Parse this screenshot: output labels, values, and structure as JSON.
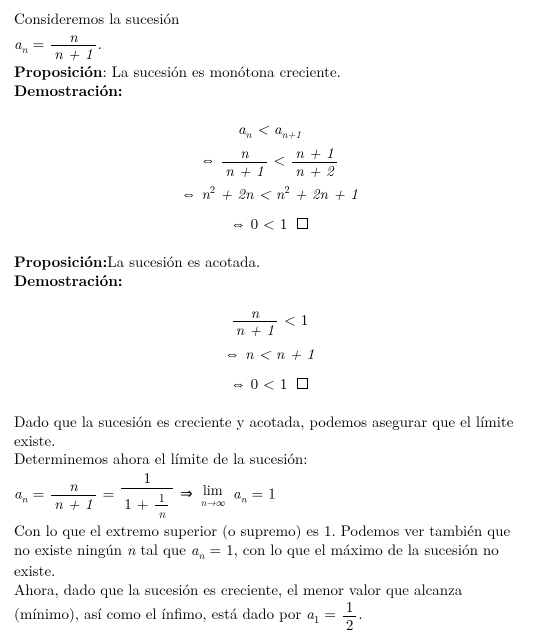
{
  "p_intro": "Consideremos la sucesión",
  "seq_def_left": "a",
  "seq_def_sub": "n",
  "seq_def_eq": " = ",
  "seq_def_num": "n",
  "seq_def_den": "n + 1",
  "seq_def_end": ".",
  "prop1_label": "Proposición",
  "prop1_text": ": La sucesión es monótona creciente.",
  "demo_label": "Demostración:",
  "eq1_l1_a": "a",
  "eq1_l1_asub": "n",
  "eq1_l1_mid": " < a",
  "eq1_l1_bsub": "n+1",
  "eq1_l2_pre": "⇔ ",
  "eq1_l2_num1": "n",
  "eq1_l2_den1": "n + 1",
  "eq1_l2_mid": " < ",
  "eq1_l2_num2": "n + 1",
  "eq1_l2_den2": "n + 2",
  "eq1_l3": "⇔ n",
  "eq1_l3_sup1": "2",
  "eq1_l3_b": " + 2n < n",
  "eq1_l3_sup2": "2",
  "eq1_l3_c": " + 2n + 1",
  "eq1_l4": "⇔ 0 < 1",
  "prop2_label": "Proposición:",
  "prop2_text": "La sucesión es acotada.",
  "eq2_l1_num": "n",
  "eq2_l1_den": "n + 1",
  "eq2_l1_rest": " < 1",
  "eq2_l2": "⇔ n < n + 1",
  "eq2_l3": "⇔ 0 < 1",
  "p_concl1": "Dado que la sucesión es creciente y acotada, podemos asegurar que el límite existe.",
  "p_det": "Determinemos ahora el límite de la sucesión:",
  "lim_a": "a",
  "lim_asub": "n",
  "lim_eq1": " = ",
  "lim_num1": "n",
  "lim_den1": "n + 1",
  "lim_eq2": " = ",
  "lim_num2": "1",
  "lim_den2a": "1 + ",
  "lim_den2_num": "1",
  "lim_den2_den": "n",
  "lim_arrow": " ⇒ ",
  "lim_word": "lim",
  "lim_under": "n→∞",
  "lim_a2": " a",
  "lim_a2sub": "n",
  "lim_a2eq": " = 1",
  "p_sup": "Con lo que el extremo superior (o supremo) es 1. Podemos ver también que no existe ningún ",
  "p_sup_n": "n",
  "p_sup_mid": " tal que ",
  "p_sup_a": "a",
  "p_sup_asub": "n",
  "p_sup_eq": " = 1, con lo que el máximo de la sucesión no existe.",
  "p_min": "Ahora, dado que la sucesión es creciente, el menor valor que alcanza (mínimo), así como el ínfimo, está dado por ",
  "p_min_a": "a",
  "p_min_asub": "1",
  "p_min_eq": " = ",
  "p_min_num": "1",
  "p_min_den": "2",
  "p_min_end": "."
}
